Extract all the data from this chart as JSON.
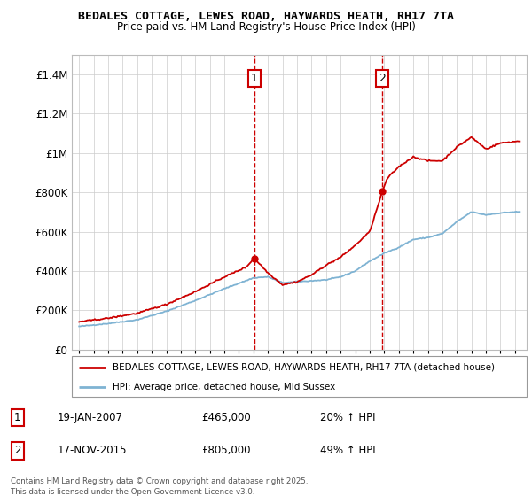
{
  "title": "BEDALES COTTAGE, LEWES ROAD, HAYWARDS HEATH, RH17 7TA",
  "subtitle": "Price paid vs. HM Land Registry's House Price Index (HPI)",
  "legend_line1": "BEDALES COTTAGE, LEWES ROAD, HAYWARDS HEATH, RH17 7TA (detached house)",
  "legend_line2": "HPI: Average price, detached house, Mid Sussex",
  "annotation1_date": "19-JAN-2007",
  "annotation1_price": "£465,000",
  "annotation1_hpi": "20% ↑ HPI",
  "annotation2_date": "17-NOV-2015",
  "annotation2_price": "£805,000",
  "annotation2_hpi": "49% ↑ HPI",
  "footnote": "Contains HM Land Registry data © Crown copyright and database right 2025.\nThis data is licensed under the Open Government Licence v3.0.",
  "sale1_year": 2007.05,
  "sale1_value": 465000,
  "sale2_year": 2015.88,
  "sale2_value": 805000,
  "property_color": "#cc0000",
  "hpi_color": "#7fb3d3",
  "background_color": "#ffffff",
  "grid_color": "#cccccc",
  "ylim": [
    0,
    1500000
  ],
  "yticks": [
    0,
    200000,
    400000,
    600000,
    800000,
    1000000,
    1200000,
    1400000
  ],
  "xlim_start": 1994.5,
  "xlim_end": 2025.8
}
